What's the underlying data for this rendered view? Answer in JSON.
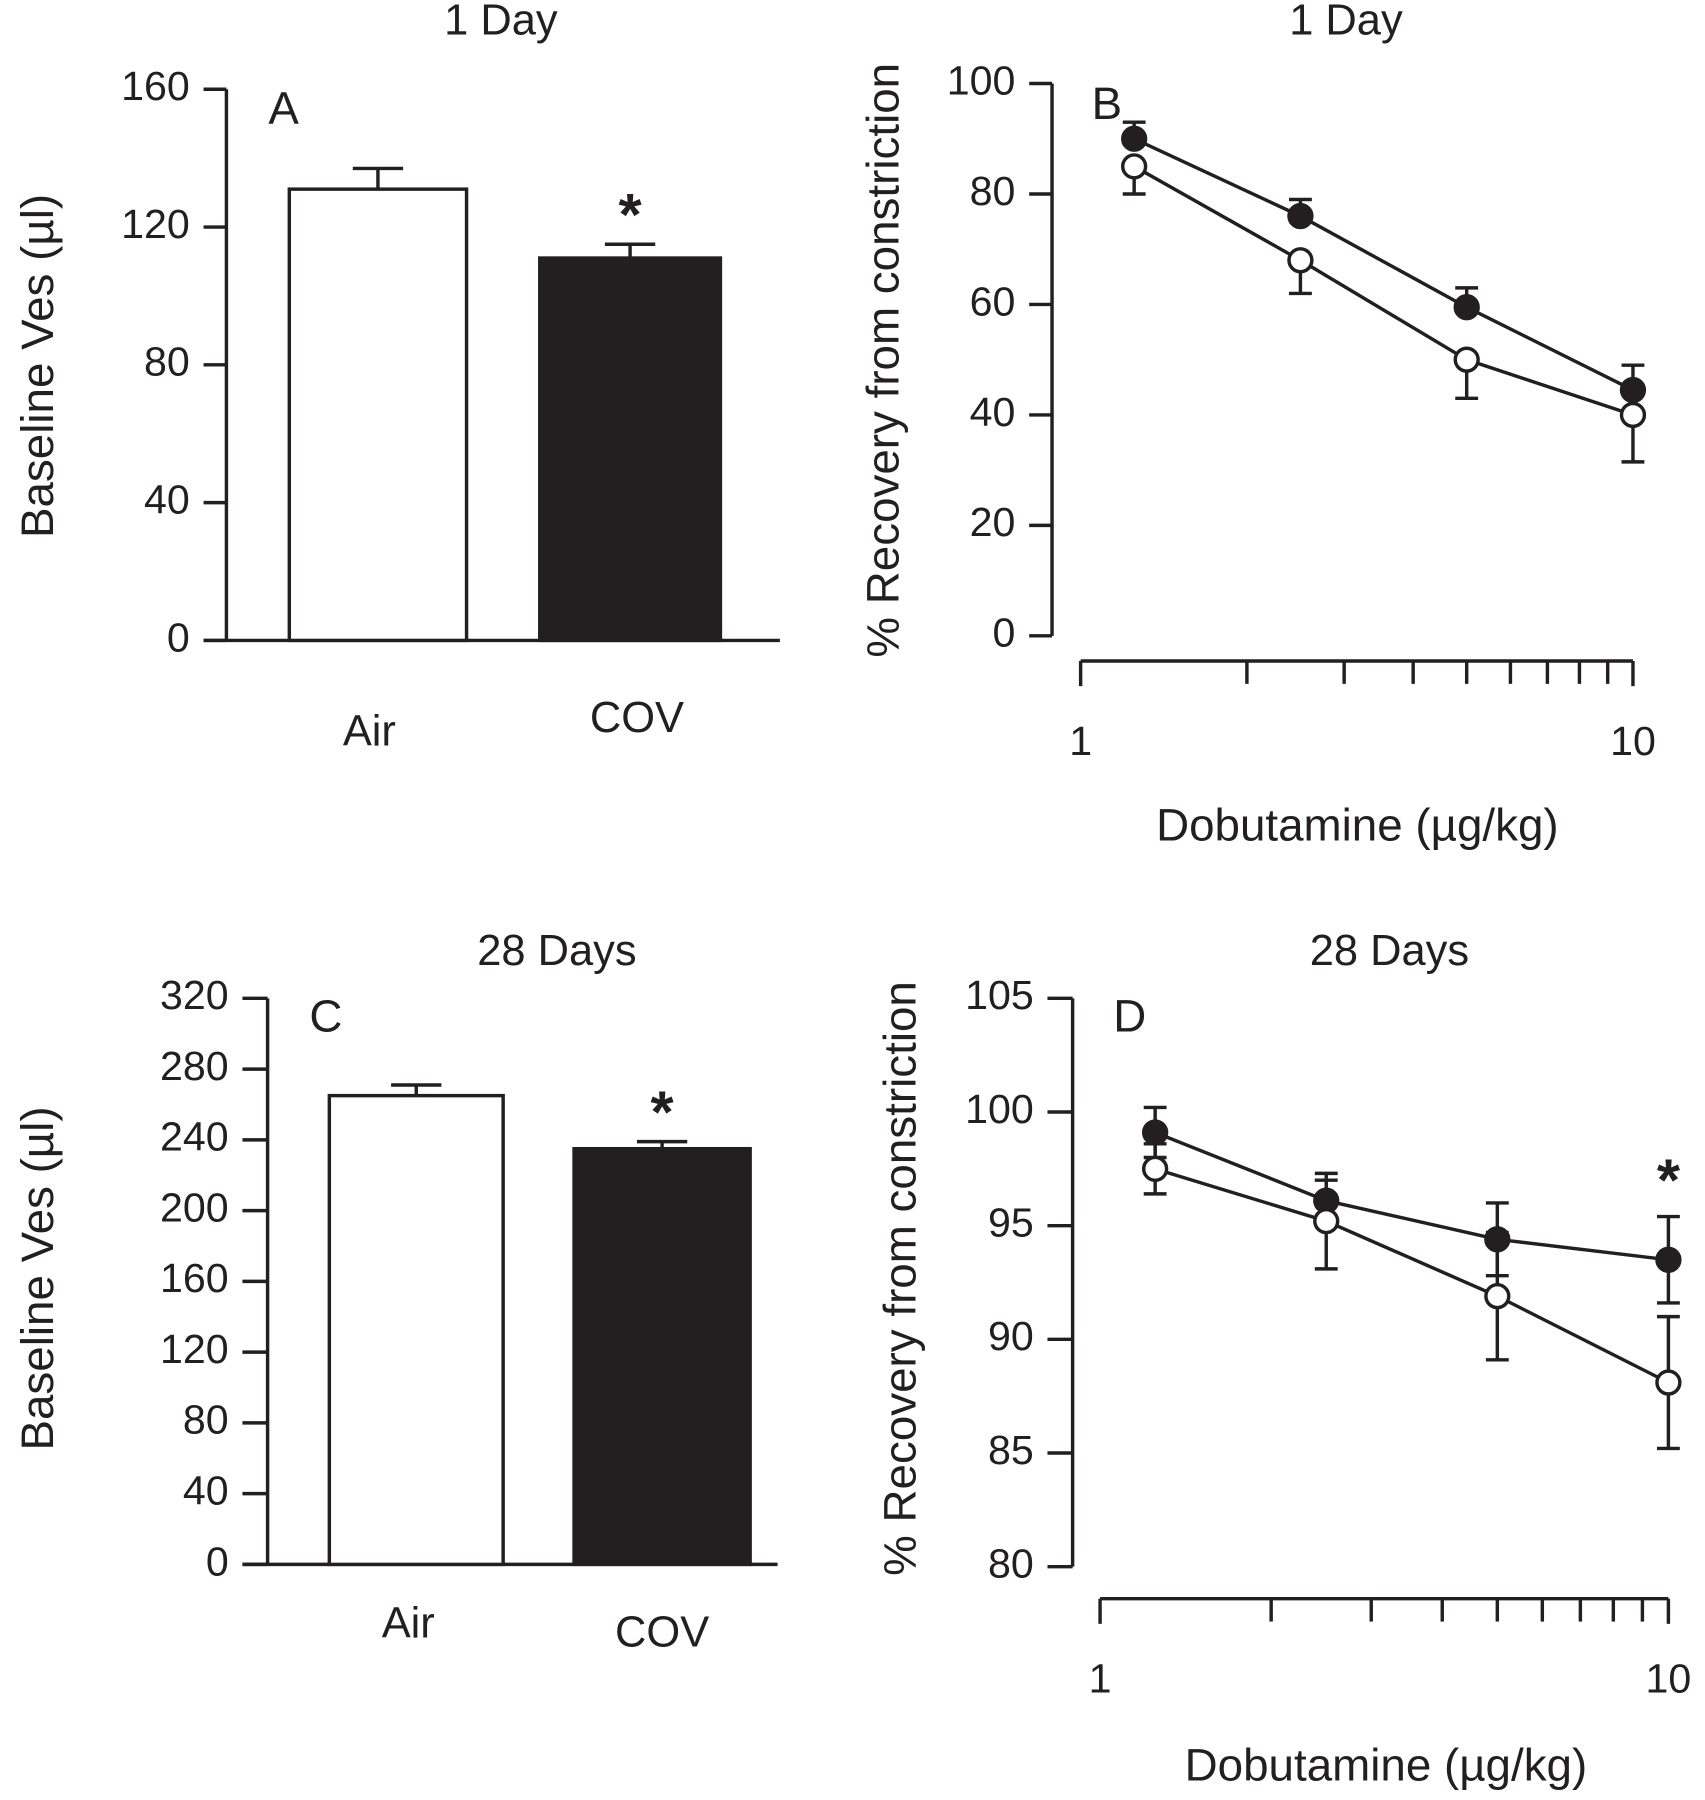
{
  "chart_data": [
    {
      "panel": "A",
      "type": "bar",
      "title": "1 Day",
      "ylabel": "Baseline Ves (µl)",
      "xlabel": "",
      "categories": [
        "Air",
        "COV"
      ],
      "values": [
        131,
        111
      ],
      "error_upper": [
        137,
        115
      ],
      "fills": [
        "#ffffff",
        "#231f20"
      ],
      "significance": [
        "",
        "*"
      ],
      "ylim": [
        0,
        160
      ],
      "yticks": [
        "0",
        "40",
        "80",
        "120",
        "160"
      ],
      "grid": false
    },
    {
      "panel": "B",
      "type": "line",
      "title": "1 Day",
      "ylabel": "% Recovery from constriction",
      "xlabel": "Dobutamine (µg/kg)",
      "xscale": "log",
      "xlim": [
        1,
        10
      ],
      "xticklabels": [
        "1",
        "10"
      ],
      "ylim": [
        0,
        100
      ],
      "yticks": [
        "0",
        "20",
        "40",
        "60",
        "80",
        "100"
      ],
      "grid": false,
      "x": [
        1.25,
        2.5,
        5,
        10
      ],
      "series": [
        {
          "name": "filled",
          "marker": "filled-circle",
          "values": [
            90,
            76,
            59.5,
            44.5
          ],
          "error": [
            3,
            3,
            3.5,
            4.5
          ],
          "error_dir": "up",
          "significance": [
            "",
            "",
            "",
            ""
          ]
        },
        {
          "name": "open",
          "marker": "open-circle",
          "values": [
            85,
            68,
            50,
            40
          ],
          "error": [
            5,
            6,
            7,
            8.5
          ],
          "error_dir": "down",
          "significance": [
            "",
            "",
            "",
            ""
          ]
        }
      ]
    },
    {
      "panel": "C",
      "type": "bar",
      "title": "28 Days",
      "ylabel": "Baseline Ves (µl)",
      "xlabel": "",
      "categories": [
        "Air",
        "COV"
      ],
      "values": [
        265,
        235
      ],
      "error_upper": [
        271,
        239
      ],
      "fills": [
        "#ffffff",
        "#231f20"
      ],
      "significance": [
        "",
        "*"
      ],
      "ylim": [
        0,
        320
      ],
      "yticks": [
        "0",
        "40",
        "80",
        "120",
        "160",
        "200",
        "240",
        "280",
        "320"
      ],
      "grid": false
    },
    {
      "panel": "D",
      "type": "line",
      "title": "28 Days",
      "ylabel": "% Recovery from constriction",
      "xlabel": "Dobutamine (µg/kg)",
      "xscale": "log",
      "xlim": [
        1,
        10
      ],
      "xticklabels": [
        "1",
        "10"
      ],
      "ylim": [
        80,
        105
      ],
      "yticks": [
        "80",
        "85",
        "90",
        "95",
        "100",
        "105"
      ],
      "grid": false,
      "x": [
        1.25,
        2.5,
        5,
        10
      ],
      "series": [
        {
          "name": "filled",
          "marker": "filled-circle",
          "values": [
            99.1,
            96.1,
            94.4,
            93.5
          ],
          "error": [
            1.1,
            0.9,
            1.6,
            1.9
          ],
          "error_dir": "both",
          "significance": [
            "",
            "",
            "",
            "*"
          ]
        },
        {
          "name": "open",
          "marker": "open-circle",
          "values": [
            97.5,
            95.2,
            91.9,
            88.1
          ],
          "error": [
            1.1,
            2.1,
            2.8,
            2.9
          ],
          "error_dir": "both",
          "significance": [
            "",
            "",
            "",
            ""
          ]
        }
      ]
    }
  ]
}
